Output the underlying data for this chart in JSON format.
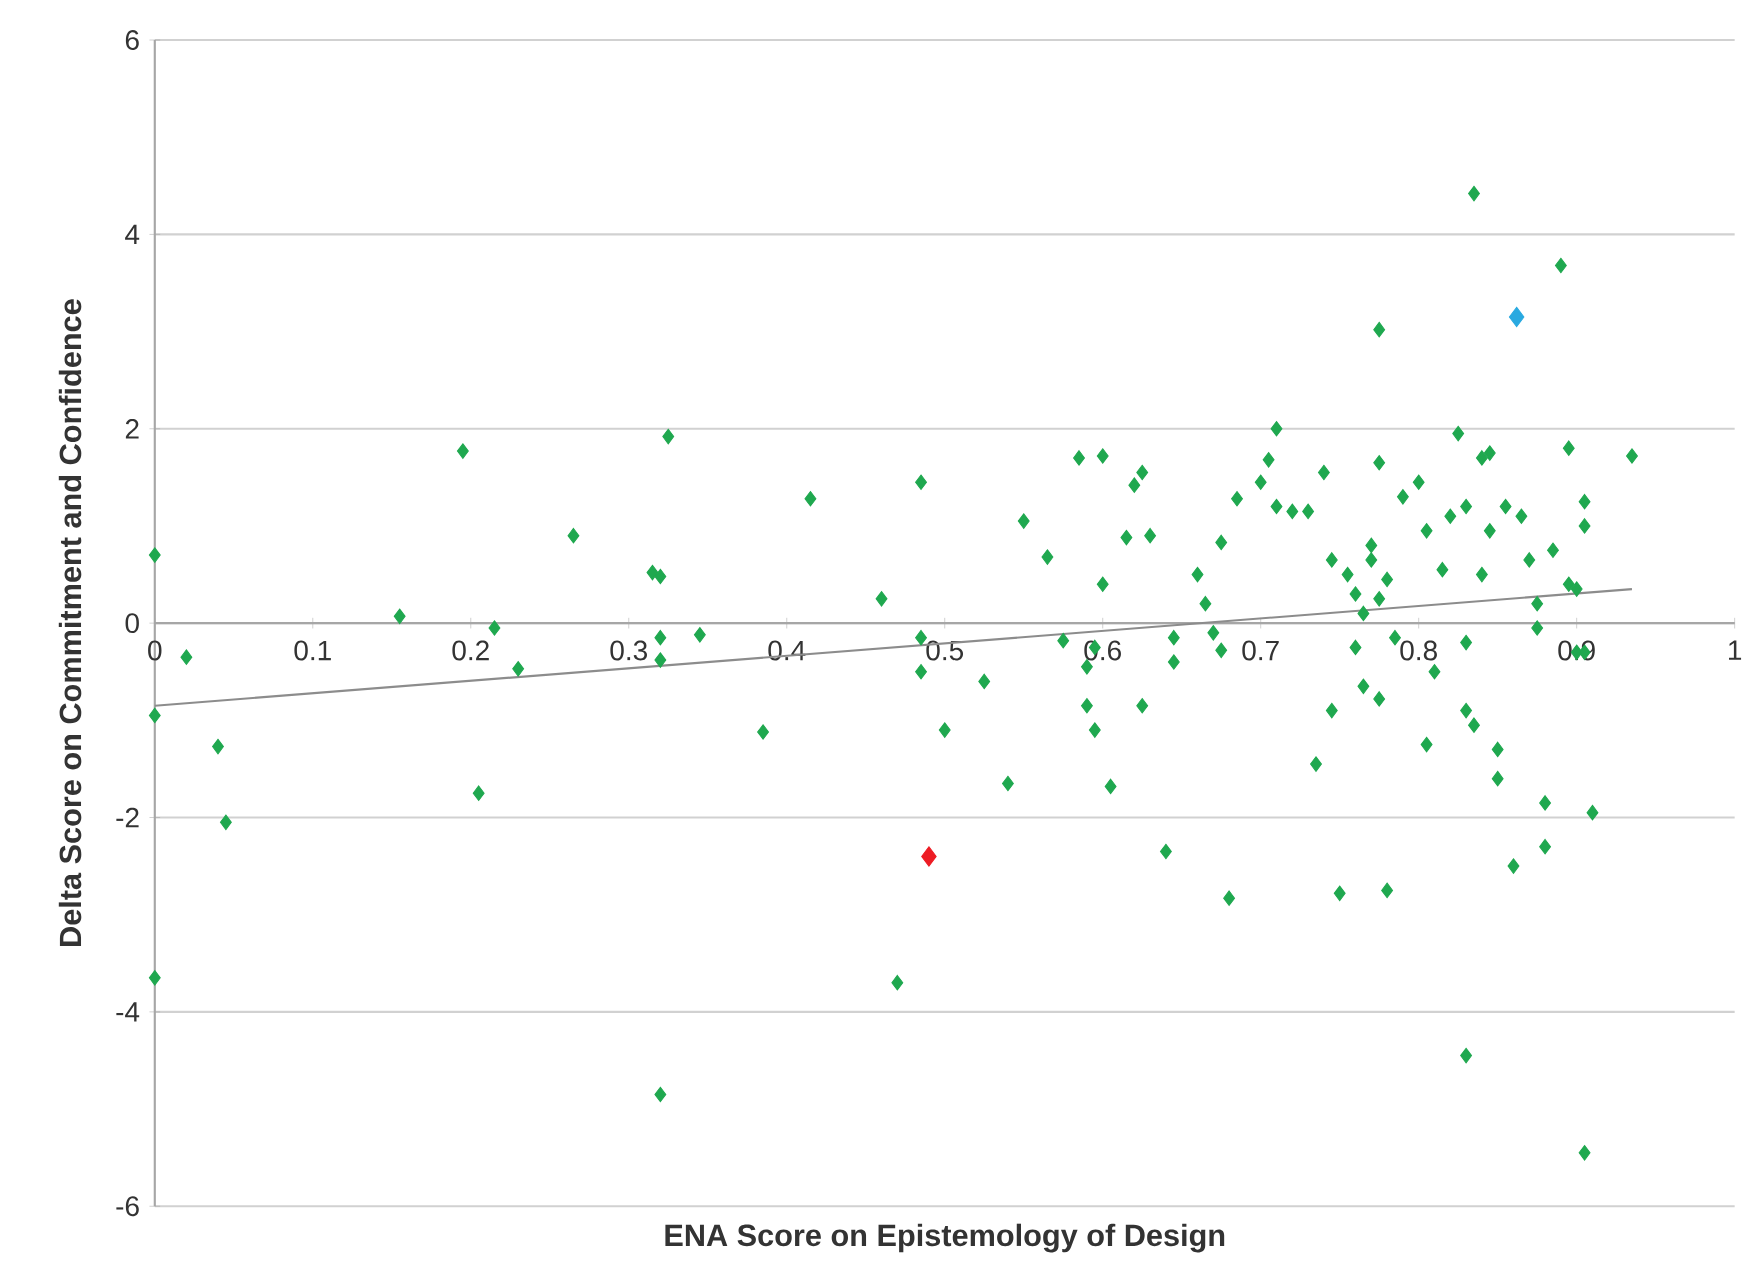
{
  "chart_data": {
    "type": "scatter",
    "xlabel": "ENA Score on Epistemology of Design",
    "ylabel": "Delta Score on Commitment and Confidence",
    "xlim": [
      0,
      1
    ],
    "ylim": [
      -6,
      6
    ],
    "xticks": [
      0,
      0.1,
      0.2,
      0.3,
      0.4,
      0.5,
      0.6,
      0.7,
      0.8,
      0.9,
      1
    ],
    "yticks": [
      -6,
      -4,
      -2,
      0,
      2,
      4,
      6
    ],
    "grid": "y",
    "marker": "diamond",
    "series": [
      {
        "color": "#1fa84f",
        "x": [
          0,
          0.02,
          0,
          0,
          0.04,
          0.045,
          0.155,
          0.195,
          0.205,
          0.215,
          0.23,
          0.265,
          0.315,
          0.32,
          0.32,
          0.32,
          0.325,
          0.345,
          0.32,
          0.385,
          0.415,
          0.46,
          0.47,
          0.485,
          0.485,
          0.485,
          0.5,
          0.525,
          0.54,
          0.55,
          0.565,
          0.575,
          0.585,
          0.59,
          0.595,
          0.595,
          0.59,
          0.6,
          0.6,
          0.605,
          0.615,
          0.62,
          0.625,
          0.63,
          0.625,
          0.64,
          0.645,
          0.645,
          0.66,
          0.665,
          0.67,
          0.675,
          0.675,
          0.68,
          0.685,
          0.7,
          0.705,
          0.71,
          0.71,
          0.72,
          0.73,
          0.735,
          0.74,
          0.745,
          0.745,
          0.75,
          0.755,
          0.76,
          0.76,
          0.765,
          0.765,
          0.77,
          0.77,
          0.775,
          0.775,
          0.775,
          0.775,
          0.78,
          0.785,
          0.78,
          0.79,
          0.8,
          0.805,
          0.805,
          0.82,
          0.825,
          0.83,
          0.83,
          0.83,
          0.835,
          0.835,
          0.84,
          0.845,
          0.84,
          0.845,
          0.85,
          0.85,
          0.855,
          0.86,
          0.865,
          0.87,
          0.875,
          0.875,
          0.88,
          0.88,
          0.885,
          0.89,
          0.895,
          0.895,
          0.9,
          0.9,
          0.905,
          0.905,
          0.905,
          0.91,
          0.905,
          0.935,
          0.83,
          0.815,
          0.81
        ],
        "values": [
          0.7,
          -0.35,
          -0.95,
          -3.65,
          -1.27,
          -2.05,
          0.07,
          1.77,
          -1.75,
          -0.05,
          -0.47,
          0.9,
          0.52,
          0.48,
          -0.15,
          -0.38,
          1.92,
          -0.12,
          -4.85,
          -1.12,
          1.28,
          0.25,
          -3.7,
          1.45,
          -0.15,
          -0.5,
          -1.1,
          -0.6,
          -1.65,
          1.05,
          0.68,
          -0.18,
          1.7,
          -0.45,
          -0.25,
          -1.1,
          -0.85,
          0.4,
          1.72,
          -1.68,
          0.88,
          1.42,
          1.55,
          0.9,
          -0.85,
          -2.35,
          -0.15,
          -0.4,
          0.5,
          0.2,
          -0.1,
          -0.28,
          0.83,
          -2.83,
          1.28,
          1.45,
          1.68,
          2.0,
          1.2,
          1.15,
          1.15,
          -1.45,
          1.55,
          0.65,
          -0.9,
          -2.78,
          0.5,
          0.3,
          -0.25,
          0.1,
          -0.65,
          0.8,
          0.65,
          1.65,
          3.02,
          0.25,
          -0.78,
          0.45,
          -0.15,
          -2.75,
          1.3,
          1.45,
          0.95,
          -1.25,
          1.1,
          1.95,
          1.2,
          -0.2,
          -0.9,
          -1.05,
          4.42,
          1.7,
          1.75,
          0.5,
          0.95,
          -1.3,
          -1.6,
          1.2,
          -2.5,
          1.1,
          0.65,
          0.2,
          -0.05,
          -2.3,
          -1.85,
          0.75,
          3.68,
          0.4,
          1.8,
          0.35,
          -0.3,
          -0.3,
          1.0,
          1.25,
          -1.95,
          -5.45,
          1.72,
          -4.45,
          0.55,
          -0.5
        ]
      },
      {
        "color": "#ed1c24",
        "x": [
          0.49
        ],
        "values": [
          -2.4
        ]
      },
      {
        "color": "#29a9e0",
        "x": [
          0.862
        ],
        "values": [
          3.15
        ]
      },
      {
        "type": "line",
        "marker": "none",
        "color": "#8c8c8c",
        "x": [
          0,
          0.935
        ],
        "values": [
          -0.85,
          0.35
        ]
      }
    ]
  }
}
